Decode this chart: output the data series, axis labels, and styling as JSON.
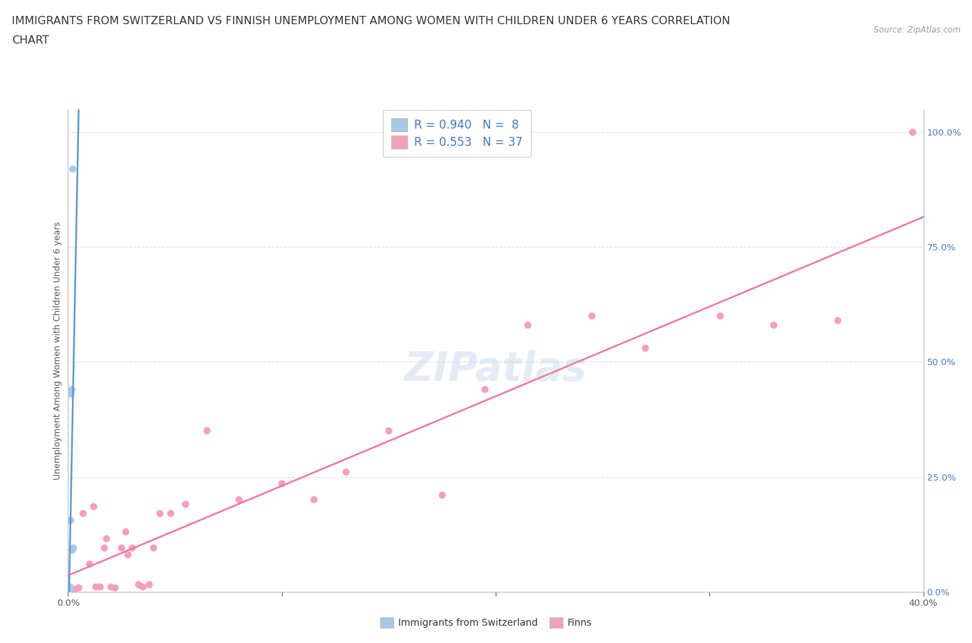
{
  "title_line1": "IMMIGRANTS FROM SWITZERLAND VS FINNISH UNEMPLOYMENT AMONG WOMEN WITH CHILDREN UNDER 6 YEARS CORRELATION",
  "title_line2": "CHART",
  "source": "Source: ZipAtlas.com",
  "ylabel": "Unemployment Among Women with Children Under 6 years",
  "x_min": 0.0,
  "x_max": 0.4,
  "y_min": 0.0,
  "y_max": 1.05,
  "y_ticks_right": [
    0.0,
    0.25,
    0.5,
    0.75,
    1.0
  ],
  "y_tick_labels_right": [
    "0.0%",
    "25.0%",
    "50.0%",
    "75.0%",
    "100.0%"
  ],
  "swiss_color": "#a8c8e8",
  "finn_color": "#f4a0b8",
  "swiss_line_color": "#5599dd",
  "finn_line_color": "#ee7799",
  "swiss_r": 0.94,
  "swiss_n": 8,
  "finn_r": 0.553,
  "finn_n": 37,
  "legend_r_color": "#4477cc",
  "swiss_x": [
    0.0008,
    0.001,
    0.0012,
    0.0015,
    0.0018,
    0.002,
    0.0022,
    0.0025
  ],
  "swiss_y": [
    0.005,
    0.01,
    0.155,
    0.43,
    0.44,
    0.09,
    0.92,
    0.095
  ],
  "finn_x": [
    0.003,
    0.005,
    0.007,
    0.01,
    0.012,
    0.013,
    0.015,
    0.017,
    0.018,
    0.02,
    0.022,
    0.025,
    0.027,
    0.028,
    0.03,
    0.033,
    0.035,
    0.038,
    0.04,
    0.043,
    0.048,
    0.055,
    0.065,
    0.08,
    0.1,
    0.115,
    0.13,
    0.15,
    0.175,
    0.195,
    0.215,
    0.245,
    0.27,
    0.305,
    0.33,
    0.36,
    0.395
  ],
  "finn_y": [
    0.005,
    0.008,
    0.17,
    0.06,
    0.185,
    0.01,
    0.01,
    0.095,
    0.115,
    0.01,
    0.008,
    0.095,
    0.13,
    0.08,
    0.095,
    0.015,
    0.01,
    0.015,
    0.095,
    0.17,
    0.17,
    0.19,
    0.35,
    0.2,
    0.235,
    0.2,
    0.26,
    0.35,
    0.21,
    0.44,
    0.58,
    0.6,
    0.53,
    0.6,
    0.58,
    0.59,
    1.0
  ],
  "background_color": "#ffffff",
  "grid_color": "#dddddd",
  "title_fontsize": 11.5,
  "axis_label_fontsize": 9,
  "tick_fontsize": 9.5,
  "legend_fontsize": 12
}
